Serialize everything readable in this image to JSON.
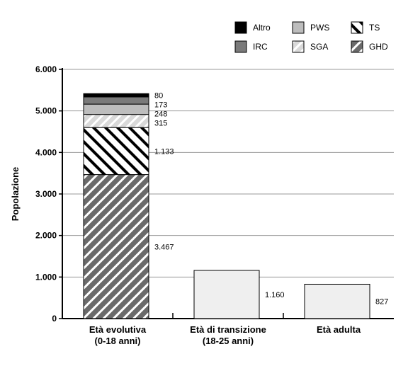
{
  "chart_data": {
    "type": "bar",
    "stacked": true,
    "ylabel": "Popolazione",
    "xlabel": "",
    "ylim": [
      0,
      6000
    ],
    "yticks": [
      "0",
      "1.000",
      "2.000",
      "3.000",
      "4.000",
      "5.000",
      "6.000"
    ],
    "grid": true,
    "legend_position": "top-right",
    "categories": [
      [
        "Età evolutiva",
        "(0-18 anni)"
      ],
      [
        "Età di transizione",
        "(18-25 anni)"
      ],
      [
        "Età adulta"
      ]
    ],
    "series": [
      {
        "name": "GHD",
        "pattern": "hatch-dense",
        "color": "#6a6a6a",
        "values": [
          3467,
          null,
          null
        ],
        "labels": [
          "3.467",
          "",
          ""
        ]
      },
      {
        "name": "TS",
        "pattern": "hatch-white",
        "color": "#ffffff",
        "values": [
          1133,
          null,
          null
        ],
        "labels": [
          "1.133",
          "",
          ""
        ]
      },
      {
        "name": "SGA",
        "pattern": "hatch-light",
        "color": "#d9d9d9",
        "values": [
          315,
          null,
          null
        ],
        "labels": [
          "315",
          "",
          ""
        ]
      },
      {
        "name": "PWS",
        "pattern": "solid",
        "color": "#bdbdbd",
        "values": [
          248,
          null,
          null
        ],
        "labels": [
          "248",
          "",
          ""
        ]
      },
      {
        "name": "IRC",
        "pattern": "solid",
        "color": "#7a7a7a",
        "values": [
          173,
          null,
          null
        ],
        "labels": [
          "173",
          "",
          ""
        ]
      },
      {
        "name": "Altro",
        "pattern": "solid",
        "color": "#000000",
        "values": [
          80,
          null,
          null
        ],
        "labels": [
          "80",
          "",
          ""
        ]
      }
    ],
    "totals": [
      {
        "category_index": 1,
        "value": 1160,
        "label": "1.160",
        "color": "#efefef"
      },
      {
        "category_index": 2,
        "value": 827,
        "label": "827",
        "color": "#efefef"
      }
    ],
    "legend_order": [
      "Altro",
      "PWS",
      "TS",
      "IRC",
      "SGA",
      "GHD"
    ]
  }
}
